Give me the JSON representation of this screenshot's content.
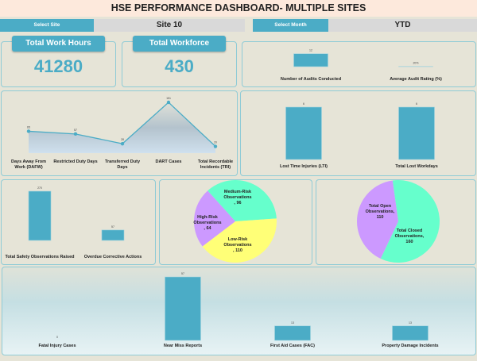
{
  "header": {
    "title": "HSE PERFORMANCE DASHBOARD- MULTIPLE SITES"
  },
  "filters": {
    "site_label": "Select Site",
    "site_value": "Site 10",
    "month_label": "Select Month",
    "month_value": "YTD"
  },
  "kpis": {
    "work_hours_label": "Total Work Hours",
    "work_hours": "41280",
    "workforce_label": "Total Workforce",
    "workforce": "430"
  },
  "colors": {
    "accent": "#4bacc6",
    "panel_border": "#8fcbd6",
    "pie_green": "#66ffcc",
    "pie_purple": "#cc99ff",
    "pie_yellow": "#ffff77"
  },
  "charts": {
    "audits": {
      "type": "bar",
      "categories": [
        "Number of Audits Conducted",
        "Average Audit Rating (%)"
      ],
      "values": [
        12,
        0.2
      ],
      "labels": [
        "12",
        "20%"
      ]
    },
    "incidents": {
      "type": "area",
      "categories": [
        "Days Away From Work (DAFW)",
        "Restricted Duty Days",
        "Transferred Duty Days",
        "DART Cases",
        "Total Recordable Incidents (TRI)"
      ],
      "values": [
        65,
        57,
        28,
        151,
        20
      ]
    },
    "lti": {
      "type": "bar",
      "categories": [
        "Lost Time Injuries (LTI)",
        "Total Lost Workdays"
      ],
      "values": [
        6,
        6
      ]
    },
    "observations": {
      "type": "bar",
      "categories": [
        "Total Safety Observations Raised",
        "Overdue Corrective Actions"
      ],
      "values": [
        270,
        57
      ]
    },
    "risk_pie": {
      "type": "pie",
      "slices": [
        {
          "label": "Medium-Risk Observations",
          "value": 96
        },
        {
          "label": "Low-Risk Observations",
          "value": 110
        },
        {
          "label": "High-Risk Observations",
          "value": 64
        }
      ]
    },
    "status_pie": {
      "type": "pie",
      "slices": [
        {
          "label": "Total Closed Observations,",
          "value": 160
        },
        {
          "label": "Total Open Observations,",
          "value": 110
        }
      ]
    },
    "events": {
      "type": "bar",
      "categories": [
        "Fatal Injury Cases",
        "Near Miss Reports",
        "First Aid Cases (FAC)",
        "Property Damage Incidents"
      ],
      "values": [
        0,
        57,
        13,
        13
      ]
    }
  }
}
